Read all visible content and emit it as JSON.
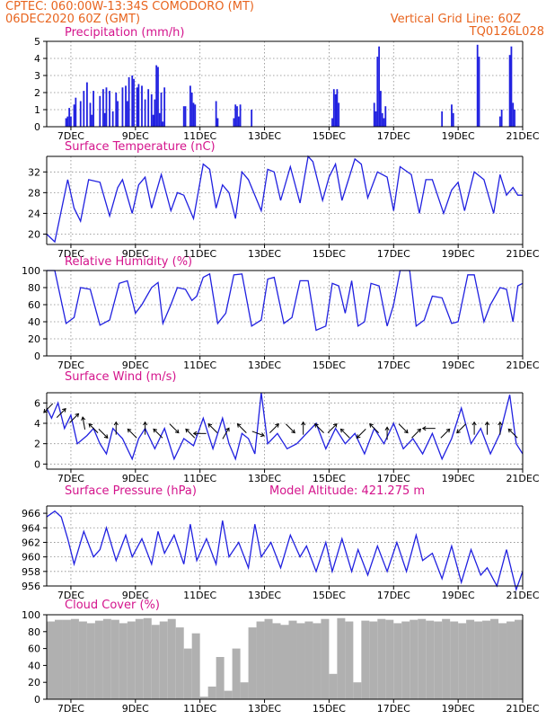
{
  "header": {
    "line1_left": "CPTEC:   060:00W-13:34S   COMODORO (MT)",
    "line2_left": "06DEC2020 60Z (GMT)",
    "line2_right": "Vertical Grid Line: 60Z",
    "line3_right": "TQ0126L028",
    "header_color": "#e8641e",
    "title_color": "#d4148c",
    "line_color": "#2020e0",
    "cloud_color": "#b0b0b0"
  },
  "x_axis": {
    "range": [
      6.25,
      21.0
    ],
    "ticks": [
      7,
      9,
      11,
      13,
      15,
      17,
      19,
      21
    ],
    "tick_labels": [
      "7DEC",
      "9DEC",
      "11DEC",
      "13DEC",
      "15DEC",
      "17DEC",
      "19DEC",
      "21DEC"
    ]
  },
  "chart_data": [
    {
      "type": "bar",
      "title": "Precipitation (mm/h)",
      "x_unit": "day of December 2020",
      "ylim": [
        0,
        5
      ],
      "yticks": [
        0,
        1,
        2,
        3,
        4,
        5
      ],
      "grid": true,
      "x": [
        6.85,
        6.9,
        6.95,
        7.0,
        7.1,
        7.15,
        7.3,
        7.4,
        7.5,
        7.6,
        7.65,
        7.7,
        7.9,
        8.0,
        8.05,
        8.1,
        8.2,
        8.3,
        8.4,
        8.45,
        8.6,
        8.7,
        8.75,
        8.8,
        8.9,
        8.95,
        9.05,
        9.1,
        9.2,
        9.3,
        9.4,
        9.5,
        9.55,
        9.6,
        9.65,
        9.7,
        9.75,
        9.8,
        9.85,
        9.9,
        10.5,
        10.55,
        10.7,
        10.75,
        10.8,
        10.85,
        11.5,
        11.55,
        12.05,
        12.1,
        12.15,
        12.2,
        12.25,
        12.6,
        15.1,
        15.15,
        15.2,
        15.25,
        15.3,
        16.4,
        16.45,
        16.5,
        16.55,
        16.6,
        16.65,
        16.7,
        16.75,
        18.5,
        18.8,
        18.85,
        19.6,
        19.65,
        20.3,
        20.35,
        20.6,
        20.65,
        20.7,
        20.75
      ],
      "values": [
        0.5,
        0.6,
        1.1,
        0.6,
        1.3,
        1.7,
        1.5,
        2.1,
        2.6,
        1.4,
        0.7,
        2.1,
        1.8,
        2.2,
        0.8,
        2.3,
        2.1,
        0.9,
        2.0,
        1.5,
        2.3,
        2.4,
        1.5,
        2.9,
        3.0,
        2.8,
        2.3,
        2.5,
        2.4,
        1.6,
        2.2,
        1.9,
        0.7,
        1.6,
        3.6,
        3.5,
        0.8,
        2.0,
        0.3,
        2.3,
        1.2,
        1.2,
        2.4,
        2.0,
        1.4,
        1.3,
        1.5,
        0.5,
        0.5,
        1.3,
        1.2,
        0.6,
        1.3,
        1.0,
        0.5,
        2.2,
        1.9,
        2.2,
        1.4,
        1.4,
        0.9,
        4.1,
        4.7,
        2.1,
        0.8,
        0.5,
        1.2,
        0.9,
        1.3,
        0.8,
        4.8,
        4.1,
        0.6,
        1.0,
        4.2,
        4.7,
        1.4,
        1.0
      ]
    },
    {
      "type": "line",
      "title": "Surface Temperature (nC)",
      "x_unit": "day of December 2020",
      "ylim": [
        18,
        35
      ],
      "yticks": [
        20,
        24,
        28,
        32
      ],
      "grid": true,
      "x": [
        6.25,
        6.5,
        6.7,
        6.9,
        7.1,
        7.3,
        7.55,
        7.9,
        8.2,
        8.45,
        8.6,
        8.9,
        9.1,
        9.3,
        9.5,
        9.8,
        10.1,
        10.3,
        10.5,
        10.8,
        11.1,
        11.3,
        11.5,
        11.7,
        11.9,
        12.1,
        12.3,
        12.5,
        12.9,
        13.1,
        13.3,
        13.5,
        13.8,
        14.1,
        14.35,
        14.5,
        14.8,
        15.0,
        15.2,
        15.4,
        15.8,
        16.0,
        16.2,
        16.5,
        16.8,
        17.0,
        17.2,
        17.55,
        17.8,
        18.0,
        18.2,
        18.55,
        18.8,
        19.0,
        19.2,
        19.5,
        19.8,
        20.1,
        20.3,
        20.5,
        20.7,
        20.85,
        21.0
      ],
      "values": [
        20.0,
        18.5,
        24.5,
        30.5,
        25.0,
        22.5,
        30.5,
        30.0,
        23.5,
        29.0,
        30.5,
        24.0,
        29.5,
        31.0,
        25.0,
        31.5,
        24.5,
        28.0,
        27.5,
        23.0,
        33.5,
        32.5,
        25.0,
        29.5,
        28.0,
        23.0,
        32.0,
        30.5,
        24.5,
        32.5,
        32.0,
        26.5,
        33.0,
        26.0,
        35.0,
        34.0,
        26.5,
        31.0,
        33.5,
        26.5,
        34.5,
        33.5,
        27.0,
        32.0,
        31.0,
        24.5,
        33.0,
        31.5,
        24.0,
        30.5,
        30.5,
        24.0,
        28.5,
        30.0,
        24.5,
        32.0,
        30.5,
        24.0,
        31.5,
        27.5,
        29.0,
        27.5,
        27.5
      ]
    },
    {
      "type": "line",
      "title": "Relative Humidity (%)",
      "x_unit": "day of December 2020",
      "ylim": [
        0,
        100
      ],
      "yticks": [
        0,
        20,
        40,
        60,
        80,
        100
      ],
      "grid": true,
      "x": [
        6.25,
        6.5,
        6.85,
        7.1,
        7.3,
        7.6,
        7.9,
        8.2,
        8.5,
        8.75,
        9.0,
        9.2,
        9.5,
        9.7,
        9.85,
        10.1,
        10.3,
        10.55,
        10.75,
        10.9,
        11.1,
        11.3,
        11.55,
        11.8,
        12.05,
        12.3,
        12.6,
        12.9,
        13.1,
        13.3,
        13.6,
        13.85,
        14.1,
        14.35,
        14.6,
        14.9,
        15.1,
        15.3,
        15.5,
        15.7,
        15.9,
        16.1,
        16.3,
        16.55,
        16.8,
        17.0,
        17.2,
        17.5,
        17.7,
        17.95,
        18.2,
        18.5,
        18.8,
        19.0,
        19.3,
        19.5,
        19.8,
        20.0,
        20.3,
        20.5,
        20.7,
        20.85,
        21.0
      ],
      "values": [
        100,
        100,
        38,
        45,
        80,
        78,
        36,
        42,
        85,
        88,
        50,
        60,
        80,
        86,
        38,
        60,
        80,
        78,
        65,
        70,
        92,
        96,
        38,
        50,
        95,
        96,
        35,
        42,
        90,
        92,
        38,
        45,
        88,
        88,
        30,
        35,
        85,
        82,
        50,
        88,
        35,
        40,
        85,
        82,
        35,
        60,
        100,
        100,
        35,
        42,
        70,
        68,
        38,
        40,
        95,
        95,
        40,
        60,
        80,
        78,
        40,
        82,
        85
      ]
    },
    {
      "type": "line",
      "title": "Surface Wind (m/s)",
      "x_unit": "day of December 2020",
      "ylim": [
        -0.5,
        7
      ],
      "yticks": [
        0,
        2,
        4,
        6
      ],
      "grid": true,
      "x": [
        6.25,
        6.4,
        6.6,
        6.8,
        7.0,
        7.2,
        7.5,
        7.7,
        7.9,
        8.1,
        8.3,
        8.6,
        8.9,
        9.1,
        9.3,
        9.6,
        9.9,
        10.2,
        10.5,
        10.8,
        11.1,
        11.4,
        11.7,
        11.9,
        12.1,
        12.3,
        12.5,
        12.7,
        12.9,
        13.1,
        13.4,
        13.7,
        14.0,
        14.3,
        14.6,
        14.9,
        15.2,
        15.5,
        15.8,
        16.1,
        16.4,
        16.7,
        17.0,
        17.3,
        17.6,
        17.9,
        18.2,
        18.5,
        18.8,
        19.1,
        19.4,
        19.7,
        20.0,
        20.3,
        20.6,
        20.8,
        21.0
      ],
      "values": [
        5.5,
        4.5,
        6.0,
        3.5,
        4.8,
        2.0,
        2.8,
        3.5,
        2.0,
        1.0,
        3.5,
        2.5,
        0.5,
        2.5,
        3.5,
        1.5,
        3.5,
        0.5,
        2.5,
        1.8,
        4.5,
        1.5,
        4.5,
        2.0,
        0.5,
        3.0,
        2.5,
        1.0,
        7.0,
        2.0,
        3.0,
        1.5,
        2.0,
        3.0,
        4.0,
        1.5,
        3.5,
        2.0,
        3.0,
        1.0,
        3.5,
        2.0,
        4.0,
        1.5,
        2.5,
        1.0,
        3.0,
        0.5,
        2.5,
        5.5,
        2.0,
        3.5,
        1.0,
        3.0,
        6.8,
        2.0,
        1.0
      ],
      "arrow_x": [
        6.3,
        6.7,
        7.1,
        7.4,
        7.7,
        8.0,
        8.4,
        8.9,
        9.3,
        9.7,
        10.2,
        10.7,
        11.0,
        11.4,
        11.8,
        12.3,
        12.8,
        13.3,
        13.8,
        14.2,
        14.7,
        15.1,
        15.5,
        16.0,
        16.4,
        16.8,
        17.3,
        17.7,
        18.1,
        18.6,
        19.1,
        19.5,
        19.9,
        20.3,
        20.7
      ],
      "arrow_speed": [
        5.5,
        5.0,
        4.5,
        4.0,
        3.5,
        3.0,
        3.5,
        3.0,
        3.5,
        3.0,
        3.5,
        3.0,
        3.0,
        3.5,
        3.0,
        3.5,
        3.0,
        3.5,
        3.5,
        3.5,
        3.5,
        3.5,
        3.0,
        3.0,
        3.5,
        3.0,
        3.5,
        3.0,
        3.5,
        3.0,
        3.5,
        3.5,
        3.5,
        3.5,
        3.0
      ],
      "arrow_direction_deg": [
        135,
        315,
        315,
        260,
        225,
        45,
        270,
        225,
        270,
        225,
        45,
        225,
        180,
        225,
        300,
        225,
        20,
        315,
        45,
        270,
        225,
        315,
        225,
        135,
        225,
        270,
        45,
        315,
        180,
        315,
        135,
        270,
        270,
        270,
        225
      ]
    },
    {
      "type": "line",
      "title": "Surface Pressure (hPa)",
      "subtitle": "Model Altitude: 421.275 m",
      "x_unit": "day of December 2020",
      "ylim": [
        956,
        967
      ],
      "yticks": [
        956,
        958,
        960,
        962,
        964,
        966
      ],
      "grid": true,
      "x": [
        6.25,
        6.5,
        6.7,
        6.9,
        7.1,
        7.4,
        7.7,
        7.9,
        8.1,
        8.4,
        8.7,
        8.9,
        9.2,
        9.5,
        9.7,
        9.9,
        10.2,
        10.5,
        10.7,
        10.9,
        11.2,
        11.5,
        11.7,
        11.9,
        12.2,
        12.5,
        12.7,
        12.9,
        13.2,
        13.5,
        13.8,
        14.1,
        14.3,
        14.6,
        14.9,
        15.1,
        15.4,
        15.7,
        15.9,
        16.2,
        16.5,
        16.8,
        17.1,
        17.4,
        17.7,
        17.9,
        18.2,
        18.5,
        18.8,
        19.1,
        19.4,
        19.7,
        19.9,
        20.2,
        20.5,
        20.8,
        21.0
      ],
      "values": [
        965.5,
        966.3,
        965.5,
        962.5,
        959.0,
        963.5,
        960.0,
        961.0,
        964.0,
        959.5,
        963.0,
        960.0,
        962.5,
        959.0,
        963.5,
        960.5,
        963.0,
        959.0,
        964.5,
        959.5,
        962.5,
        959.0,
        965.0,
        960.0,
        962.0,
        958.5,
        964.5,
        960.0,
        962.0,
        958.5,
        963.0,
        960.0,
        961.5,
        958.0,
        962.0,
        958.0,
        962.5,
        958.0,
        961.0,
        957.5,
        961.5,
        958.0,
        962.0,
        958.0,
        963.0,
        959.5,
        960.5,
        957.0,
        961.5,
        956.5,
        961.0,
        957.5,
        958.5,
        956.0,
        961.0,
        955.5,
        958.0
      ]
    },
    {
      "type": "bar",
      "title": "Cloud Cover (%)",
      "x_unit": "day of December 2020",
      "ylim": [
        0,
        100
      ],
      "yticks": [
        0,
        20,
        40,
        60,
        80,
        100
      ],
      "grid": false,
      "x": [
        6.25,
        6.5,
        6.75,
        7.0,
        7.25,
        7.5,
        7.75,
        8.0,
        8.25,
        8.5,
        8.75,
        9.0,
        9.25,
        9.5,
        9.75,
        10.0,
        10.25,
        10.5,
        10.75,
        11.0,
        11.25,
        11.5,
        11.75,
        12.0,
        12.25,
        12.5,
        12.75,
        13.0,
        13.25,
        13.5,
        13.75,
        14.0,
        14.25,
        14.5,
        14.75,
        15.0,
        15.25,
        15.5,
        15.75,
        16.0,
        16.25,
        16.5,
        16.75,
        17.0,
        17.25,
        17.5,
        17.75,
        18.0,
        18.25,
        18.5,
        18.75,
        19.0,
        19.25,
        19.5,
        19.75,
        20.0,
        20.25,
        20.5,
        20.75,
        21.0
      ],
      "values": [
        92,
        94,
        94,
        95,
        92,
        90,
        93,
        95,
        94,
        90,
        92,
        95,
        96,
        88,
        92,
        95,
        85,
        60,
        78,
        3,
        15,
        50,
        10,
        60,
        20,
        85,
        92,
        95,
        90,
        88,
        93,
        90,
        92,
        90,
        95,
        30,
        96,
        92,
        20,
        93,
        92,
        95,
        94,
        90,
        92,
        94,
        95,
        93,
        92,
        95,
        92,
        90,
        94,
        92,
        93,
        95,
        90,
        92,
        94,
        90
      ]
    }
  ]
}
